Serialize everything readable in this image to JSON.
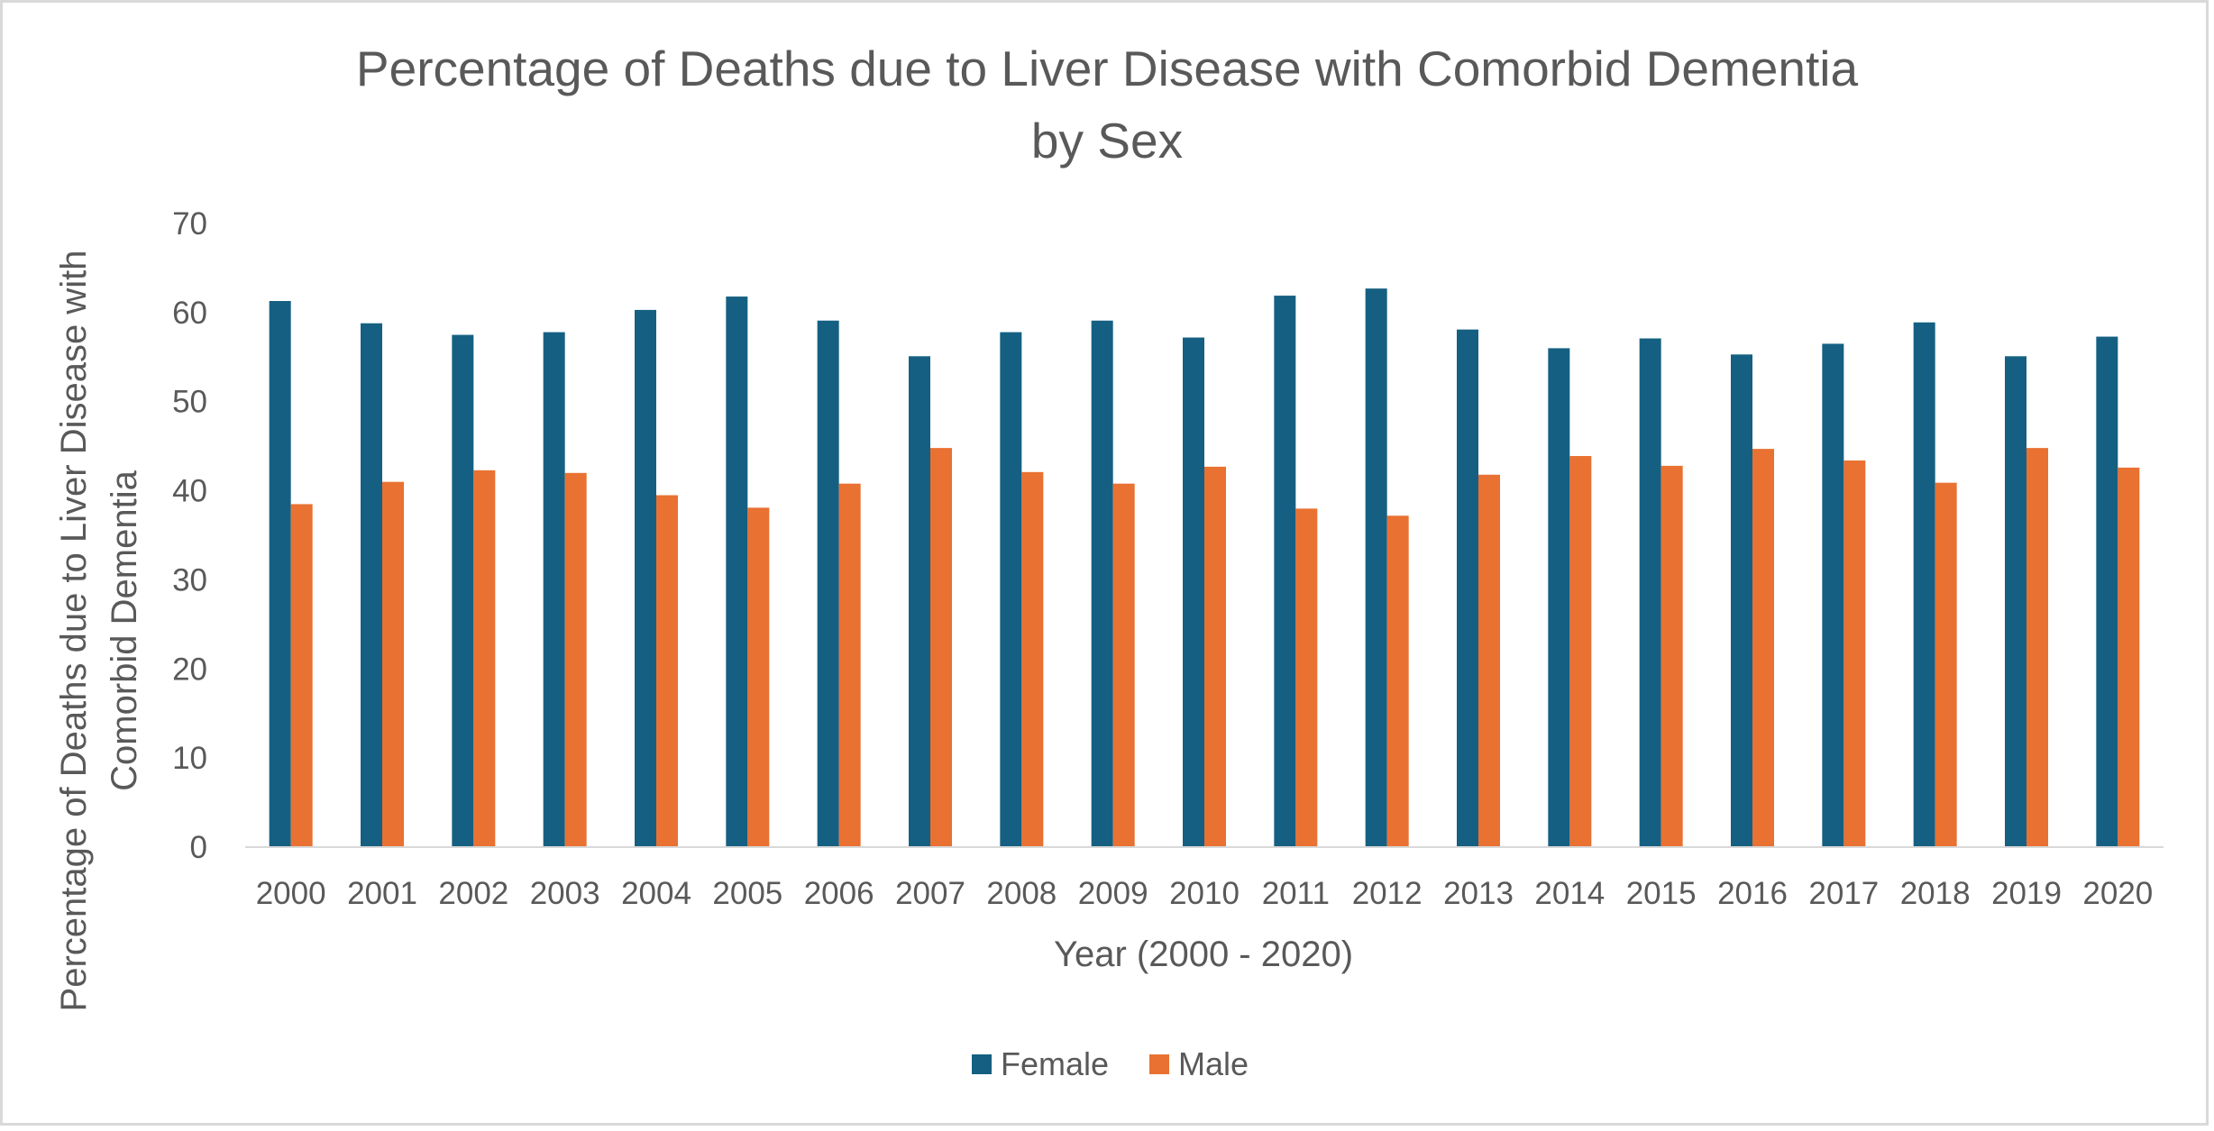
{
  "chart_data": {
    "type": "bar",
    "title_lines": [
      "Percentage of Deaths due to Liver Disease with Comorbid Dementia",
      "by Sex"
    ],
    "xlabel": "Year (2000 - 2020)",
    "ylabel_lines": [
      "Percentage of Deaths due to Liver Disease with",
      "Comorbid Dementia"
    ],
    "categories": [
      "2000",
      "2001",
      "2002",
      "2003",
      "2004",
      "2005",
      "2006",
      "2007",
      "2008",
      "2009",
      "2010",
      "2011",
      "2012",
      "2013",
      "2014",
      "2015",
      "2016",
      "2017",
      "2018",
      "2019",
      "2020"
    ],
    "series": [
      {
        "name": "Female",
        "color": "#156082",
        "values": [
          61.3,
          58.8,
          57.5,
          57.8,
          60.3,
          61.8,
          59.1,
          55.1,
          57.8,
          59.1,
          57.2,
          61.9,
          62.7,
          58.1,
          56.0,
          57.1,
          55.3,
          56.5,
          58.9,
          55.1,
          57.3
        ]
      },
      {
        "name": "Male",
        "color": "#E97132",
        "values": [
          38.5,
          41.0,
          42.3,
          42.0,
          39.5,
          38.1,
          40.8,
          44.8,
          42.1,
          40.8,
          42.7,
          38.0,
          37.2,
          41.8,
          43.9,
          42.8,
          44.7,
          43.4,
          40.9,
          44.8,
          42.6
        ]
      }
    ],
    "ylim": [
      0,
      70
    ],
    "yticks": [
      0,
      10,
      20,
      30,
      40,
      50,
      60,
      70
    ],
    "grid": false,
    "legend_position": "bottom"
  }
}
